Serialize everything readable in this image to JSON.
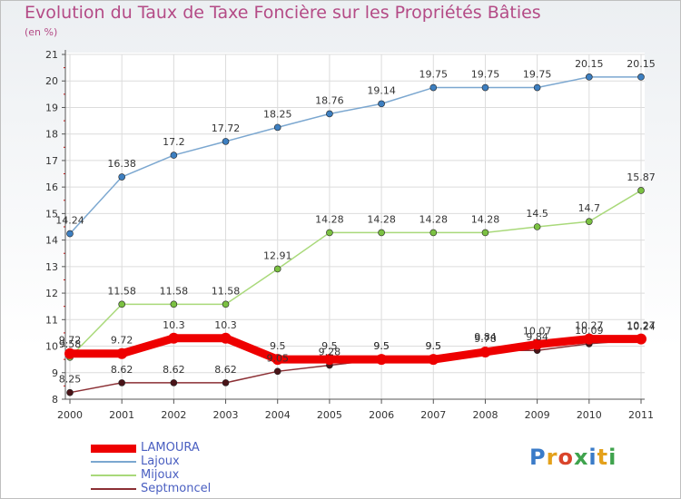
{
  "title": "Evolution du Taux de Taxe Foncière sur les Propriétés Bâties",
  "subtitle": "(en %)",
  "logo": {
    "text": "Proxiti",
    "colors": [
      "#3a7bc8",
      "#e4a11b",
      "#d9442b",
      "#3fa34d",
      "#3a7bc8",
      "#e4a11b",
      "#3fa34d"
    ]
  },
  "chart_data": {
    "type": "line",
    "x": [
      "2000",
      "2001",
      "2002",
      "2003",
      "2004",
      "2005",
      "2006",
      "2007",
      "2008",
      "2009",
      "2010",
      "2011"
    ],
    "ylim": [
      8,
      21
    ],
    "yticks": [
      "8",
      "9",
      "10",
      "11",
      "12",
      "13",
      "14",
      "15",
      "16",
      "17",
      "18",
      "19",
      "20",
      "21"
    ],
    "grid": true,
    "legend_position": "bottom-left",
    "series": [
      {
        "name": "Lajoux",
        "color": "#7ba7d0",
        "dot": "#3d7fc1",
        "width": 1.5,
        "values": [
          14.24,
          16.38,
          17.2,
          17.72,
          18.25,
          18.76,
          19.14,
          19.75,
          19.75,
          19.75,
          20.15,
          20.15
        ],
        "labels": [
          "14.24",
          "16.38",
          "17.2",
          "17.72",
          "18.25",
          "18.76",
          "19.14",
          "19.75",
          "19.75",
          "19.75",
          "20.15",
          "20.15"
        ]
      },
      {
        "name": "Mijoux",
        "color": "#a9d97a",
        "dot": "#7bc142",
        "width": 1.5,
        "values": [
          9.58,
          11.58,
          11.58,
          11.58,
          12.91,
          14.28,
          14.28,
          14.28,
          14.28,
          14.5,
          14.7,
          15.87
        ],
        "labels": [
          "9.58",
          "11.58",
          "11.58",
          "11.58",
          "12.91",
          "14.28",
          "14.28",
          "14.28",
          "14.28",
          "14.5",
          "14.7",
          "15.87"
        ]
      },
      {
        "name": "Septmoncel",
        "color": "#8b2f34",
        "dot": "#4a1418",
        "width": 1.5,
        "values": [
          8.25,
          8.62,
          8.62,
          8.62,
          9.05,
          9.28,
          9.5,
          9.5,
          9.84,
          9.84,
          10.09,
          10.24
        ],
        "labels": [
          "8.25",
          "8.62",
          "8.62",
          "8.62",
          "9.05",
          "9.28",
          "9.5",
          "9.5",
          "9.84",
          "9.84",
          "10.09",
          "10.24"
        ]
      },
      {
        "name": "LAMOURA",
        "color": "#ee0000",
        "dot": "#ee0000",
        "width": 9,
        "values": [
          9.72,
          9.72,
          10.3,
          10.3,
          9.5,
          9.5,
          9.5,
          9.5,
          9.78,
          10.07,
          10.27,
          10.27
        ],
        "labels": [
          "9.72",
          "9.72",
          "10.3",
          "10.3",
          "9.5",
          "9.5",
          "9.5",
          "9.5",
          "9.78",
          "10.07",
          "10.27",
          "10.27"
        ]
      }
    ],
    "legend_order": [
      "LAMOURA",
      "Lajoux",
      "Mijoux",
      "Septmoncel"
    ]
  }
}
